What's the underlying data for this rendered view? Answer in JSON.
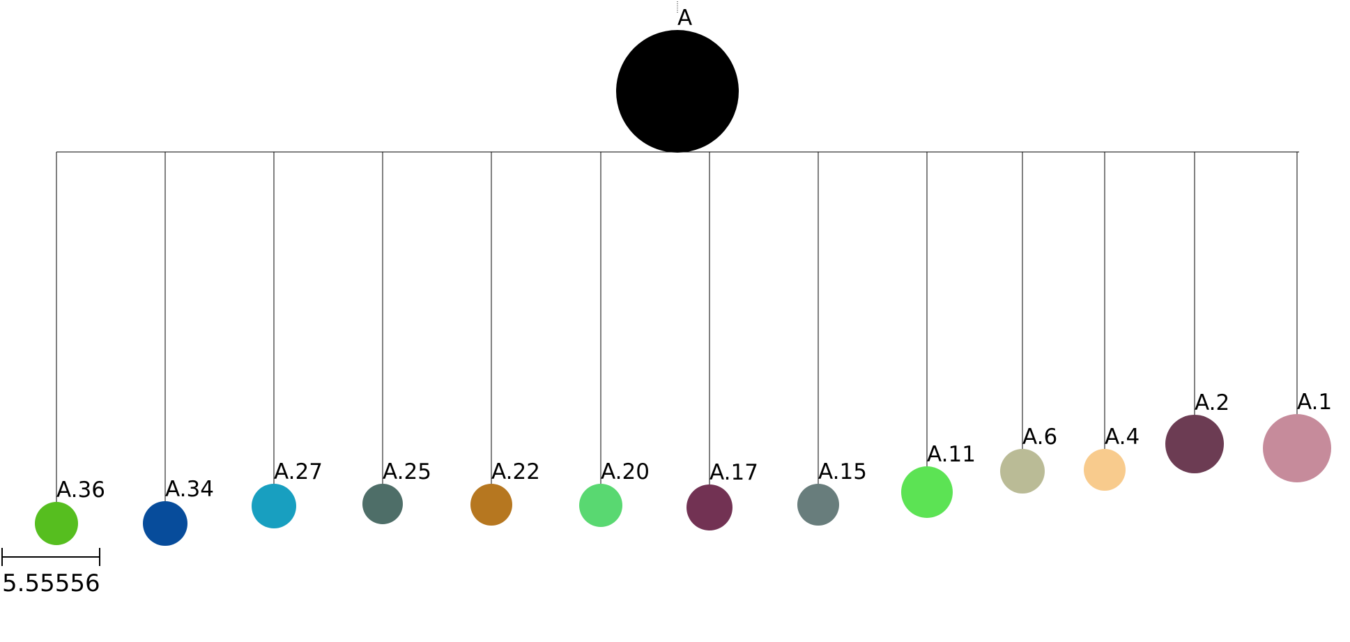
{
  "tree": {
    "root": {
      "label": "A",
      "color": "#000000"
    },
    "children": [
      {
        "label": "A.36",
        "color": "#56be1f"
      },
      {
        "label": "A.34",
        "color": "#074c9b"
      },
      {
        "label": "A.27",
        "color": "#189fc0"
      },
      {
        "label": "A.25",
        "color": "#4e6e68"
      },
      {
        "label": "A.22",
        "color": "#b67720"
      },
      {
        "label": "A.20",
        "color": "#59d871"
      },
      {
        "label": "A.17",
        "color": "#723253"
      },
      {
        "label": "A.15",
        "color": "#687d7c"
      },
      {
        "label": "A.11",
        "color": "#5ce354"
      },
      {
        "label": "A.6",
        "color": "#babb96"
      },
      {
        "label": "A.4",
        "color": "#f8cb8d"
      },
      {
        "label": "A.2",
        "color": "#6c3c53"
      },
      {
        "label": "A.1",
        "color": "#c68b9b"
      }
    ]
  },
  "scale_bar": {
    "label": "5.55556"
  }
}
